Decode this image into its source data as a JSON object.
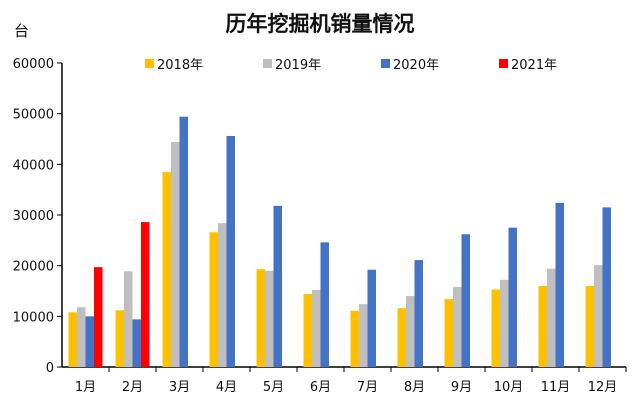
{
  "chart_data": {
    "type": "bar",
    "title": "历年挖掘机销量情况",
    "ylabel": "台",
    "xlabel": "",
    "ylim": [
      0,
      60000
    ],
    "yticks": [
      "0",
      "10000",
      "20000",
      "30000",
      "40000",
      "50000",
      "60000"
    ],
    "grid": false,
    "legend_position": "top",
    "categories": [
      "1月",
      "2月",
      "3月",
      "4月",
      "5月",
      "6月",
      "7月",
      "8月",
      "9月",
      "10月",
      "11月",
      "12月"
    ],
    "series": [
      {
        "name": "2018年",
        "color": "#FFC000",
        "values": [
          10800,
          11200,
          38500,
          26600,
          19300,
          14400,
          11100,
          11600,
          13400,
          15300,
          16000,
          16000
        ]
      },
      {
        "name": "2019年",
        "color": "#BFBFBF",
        "values": [
          11800,
          18900,
          44400,
          28400,
          19000,
          15200,
          12400,
          14000,
          15800,
          17200,
          19400,
          20100
        ]
      },
      {
        "name": "2020年",
        "color": "#4472C4",
        "values": [
          10000,
          9400,
          49400,
          45600,
          31800,
          24600,
          19200,
          21100,
          26200,
          27500,
          32400,
          31500
        ]
      },
      {
        "name": "2021年",
        "color": "#FF0000",
        "values": [
          19700,
          28600,
          null,
          null,
          null,
          null,
          null,
          null,
          null,
          null,
          null,
          null
        ]
      }
    ]
  }
}
